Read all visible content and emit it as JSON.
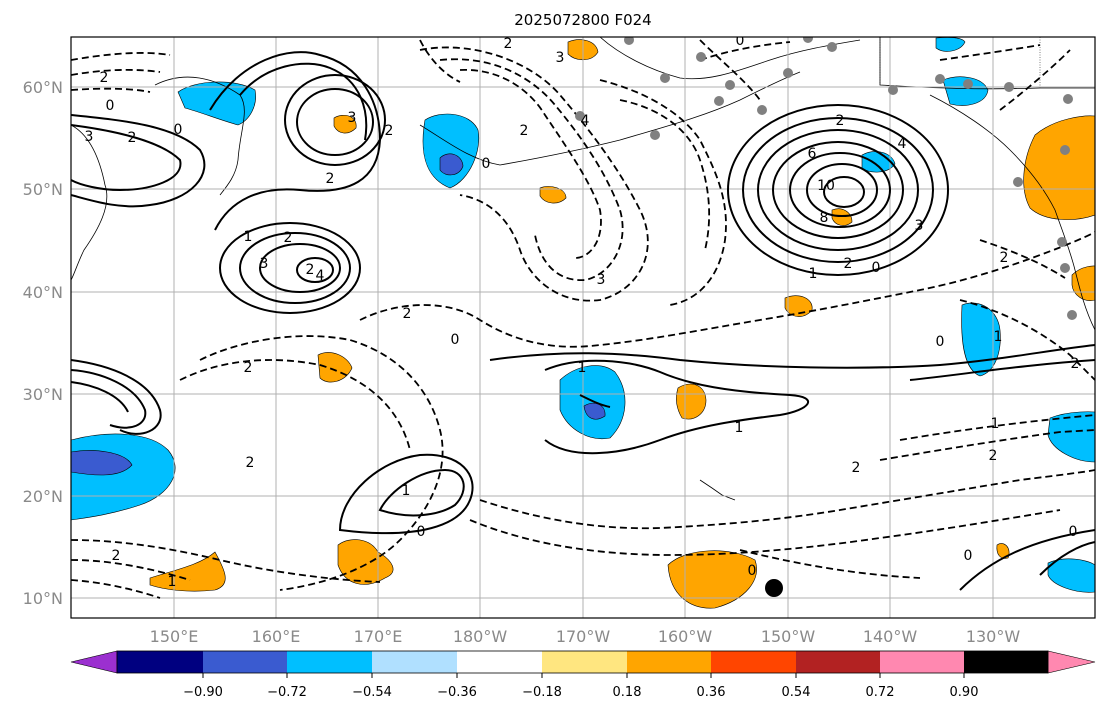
{
  "title": "2025072800 F024",
  "lat_labels": [
    "10°N",
    "20°N",
    "30°N",
    "40°N",
    "50°N",
    "60°N"
  ],
  "lon_labels": [
    "150°E",
    "160°E",
    "170°E",
    "180°W",
    "170°W",
    "160°W",
    "150°W",
    "140°W",
    "130°W"
  ],
  "colorbar": {
    "ticks": [
      "−0.90",
      "−0.72",
      "−0.54",
      "−0.36",
      "−0.18",
      "0.18",
      "0.36",
      "0.54",
      "0.72",
      "0.90"
    ],
    "colors": [
      "#9b30d0",
      "#000080",
      "#3a5bd0",
      "#00bfff",
      "#b0e0ff",
      "#ffffff",
      "#ffe680",
      "#ffa500",
      "#ff4500",
      "#b22222",
      "#ff88b0"
    ]
  },
  "contour_labels": [
    "2",
    "3",
    "0",
    "2",
    "3",
    "2",
    "0",
    "2",
    "3",
    "2",
    "1",
    "2",
    "3",
    "4",
    "2",
    "0",
    "2",
    "2",
    "4",
    "0",
    "1",
    "1",
    "0",
    "2",
    "4",
    "6",
    "10",
    "8",
    "3",
    "2",
    "0",
    "2",
    "1",
    "2",
    "3",
    "0",
    "1",
    "1",
    "2",
    "2",
    "1",
    "2",
    "1",
    "0",
    "0",
    "0",
    "2",
    "2",
    "0"
  ]
}
